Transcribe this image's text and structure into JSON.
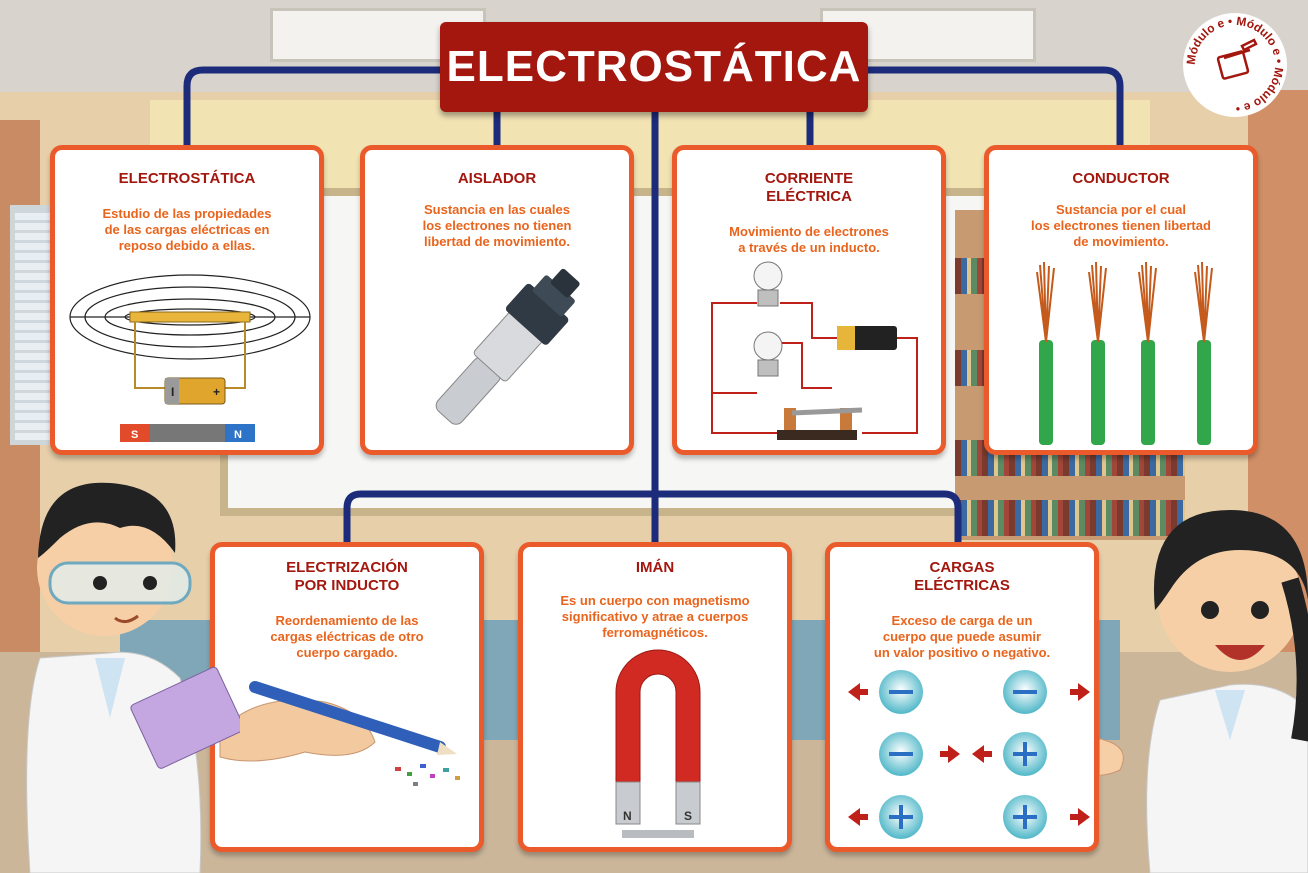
{
  "title": "ELECTROSTÁTICA",
  "logo": {
    "text_ring": "Módulo e • Módulo e • Módulo e •",
    "icon": "notebook-pencil-icon"
  },
  "colors": {
    "title_bg": "#a3170f",
    "card_border": "#ea5a2a",
    "card_title": "#a3170f",
    "card_text": "#e9641c",
    "connector": "#1c2b7a"
  },
  "top_cards": [
    {
      "title_lines": [
        "ELECTROSTÁTICA"
      ],
      "text_lines": [
        "Estudio de las propiedades",
        "de las cargas eléctricas en",
        "reposo debido a ellas."
      ],
      "icon": "magnetic-field-lines-battery-magnet-icon",
      "magnet_labels": [
        "S",
        "N"
      ]
    },
    {
      "title_lines": [
        "AISLADOR"
      ],
      "text_lines": [
        "Sustancia en las cuales",
        "los electrones no tienen",
        "libertad de movimiento."
      ],
      "icon": "insulator-cable-connector-icon"
    },
    {
      "title_lines": [
        "CORRIENTE",
        "ELÉCTRICA"
      ],
      "text_lines": [
        "Movimiento de electrones",
        "a través de un inducto."
      ],
      "icon": "circuit-bulbs-battery-switch-icon"
    },
    {
      "title_lines": [
        "CONDUCTOR"
      ],
      "text_lines": [
        "Sustancia por el cual",
        "los electrones tienen libertad",
        "de movimiento."
      ],
      "icon": "copper-wires-icon"
    }
  ],
  "bottom_cards": [
    {
      "title_lines": [
        "ELECTRIZACIÓN",
        "POR INDUCTO"
      ],
      "text_lines": [
        "Reordenamiento de las",
        "cargas eléctricas de otro",
        "cuerpo cargado."
      ],
      "icon": "hand-pencil-paper-bits-icon"
    },
    {
      "title_lines": [
        "IMÁN"
      ],
      "text_lines": [
        "Es un cuerpo con magnetismo",
        "significativo y atrae a cuerpos",
        "ferromagnéticos."
      ],
      "icon": "horseshoe-magnet-icon",
      "magnet_labels": [
        "N",
        "S"
      ]
    },
    {
      "title_lines": [
        "CARGAS",
        "ELÉCTRICAS"
      ],
      "text_lines": [
        "Exceso de carga de un",
        "cuerpo que puede asumir",
        "un valor positivo o negativo."
      ],
      "icon": "charge-interaction-icon"
    }
  ]
}
